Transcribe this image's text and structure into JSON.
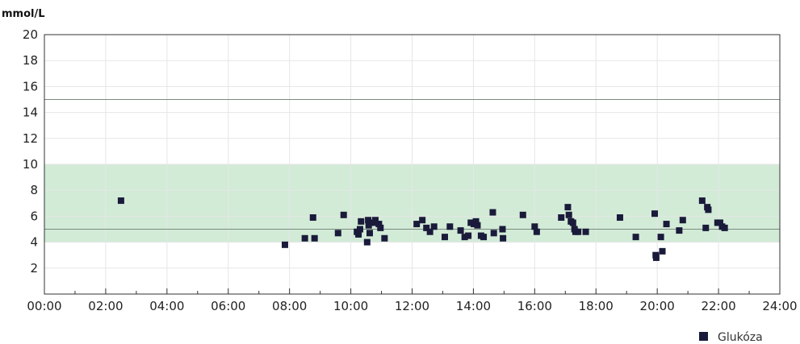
{
  "chart_data": {
    "type": "scatter",
    "ylabel": "mmol/L",
    "ylim": [
      0,
      20
    ],
    "yticks": [
      "2",
      "4",
      "6",
      "8",
      "10",
      "12",
      "14",
      "16",
      "18",
      "20"
    ],
    "xlim": [
      "00:00",
      "24:00"
    ],
    "xticks": [
      "00:00",
      "02:00",
      "04:00",
      "06:00",
      "08:00",
      "10:00",
      "12:00",
      "14:00",
      "16:00",
      "18:00",
      "20:00",
      "22:00",
      "24:00"
    ],
    "target_range": [
      4,
      10
    ],
    "reference_lines": [
      5,
      15
    ],
    "grid": true,
    "legend_position": "bottom-right",
    "colors": {
      "marker": "#1a1a3a",
      "target_band": "#d2ebd7",
      "reference_line": "#7a8a7e",
      "grid": "#e6e6e6"
    },
    "series": [
      {
        "name": "Glukóza",
        "points": [
          [
            "02:30",
            7.2
          ],
          [
            "07:51",
            3.8
          ],
          [
            "08:30",
            4.3
          ],
          [
            "08:46",
            5.9
          ],
          [
            "08:49",
            4.3
          ],
          [
            "09:35",
            4.7
          ],
          [
            "09:46",
            6.1
          ],
          [
            "10:12",
            4.8
          ],
          [
            "10:15",
            4.6
          ],
          [
            "10:18",
            5.0
          ],
          [
            "10:20",
            5.6
          ],
          [
            "10:32",
            4.0
          ],
          [
            "10:34",
            5.7
          ],
          [
            "10:35",
            5.3
          ],
          [
            "10:37",
            4.7
          ],
          [
            "10:44",
            5.5
          ],
          [
            "10:48",
            5.7
          ],
          [
            "10:55",
            5.4
          ],
          [
            "10:58",
            5.1
          ],
          [
            "11:06",
            4.3
          ],
          [
            "12:09",
            5.4
          ],
          [
            "12:20",
            5.7
          ],
          [
            "12:28",
            5.1
          ],
          [
            "12:35",
            4.8
          ],
          [
            "12:43",
            5.2
          ],
          [
            "13:04",
            4.4
          ],
          [
            "13:14",
            5.2
          ],
          [
            "13:35",
            4.9
          ],
          [
            "13:43",
            4.4
          ],
          [
            "13:50",
            4.5
          ],
          [
            "13:55",
            5.5
          ],
          [
            "14:01",
            5.4
          ],
          [
            "14:05",
            5.6
          ],
          [
            "14:08",
            5.3
          ],
          [
            "14:15",
            4.5
          ],
          [
            "14:20",
            4.4
          ],
          [
            "14:38",
            6.3
          ],
          [
            "14:40",
            4.7
          ],
          [
            "14:57",
            5.0
          ],
          [
            "14:58",
            4.3
          ],
          [
            "15:37",
            6.1
          ],
          [
            "16:00",
            5.2
          ],
          [
            "16:04",
            4.8
          ],
          [
            "16:52",
            5.9
          ],
          [
            "17:05",
            6.7
          ],
          [
            "17:07",
            6.1
          ],
          [
            "17:11",
            5.6
          ],
          [
            "17:15",
            5.5
          ],
          [
            "17:18",
            5.0
          ],
          [
            "17:20",
            4.8
          ],
          [
            "17:25",
            4.8
          ],
          [
            "17:40",
            4.8
          ],
          [
            "18:47",
            5.9
          ],
          [
            "19:18",
            4.4
          ],
          [
            "19:55",
            6.2
          ],
          [
            "19:57",
            3.0
          ],
          [
            "19:58",
            2.8
          ],
          [
            "20:07",
            4.4
          ],
          [
            "20:10",
            3.3
          ],
          [
            "20:18",
            5.4
          ],
          [
            "20:43",
            4.9
          ],
          [
            "20:50",
            5.7
          ],
          [
            "21:28",
            7.2
          ],
          [
            "21:35",
            5.1
          ],
          [
            "21:38",
            6.7
          ],
          [
            "21:40",
            6.5
          ],
          [
            "21:58",
            5.5
          ],
          [
            "22:03",
            5.5
          ],
          [
            "22:07",
            5.2
          ],
          [
            "22:12",
            5.1
          ]
        ]
      }
    ]
  }
}
